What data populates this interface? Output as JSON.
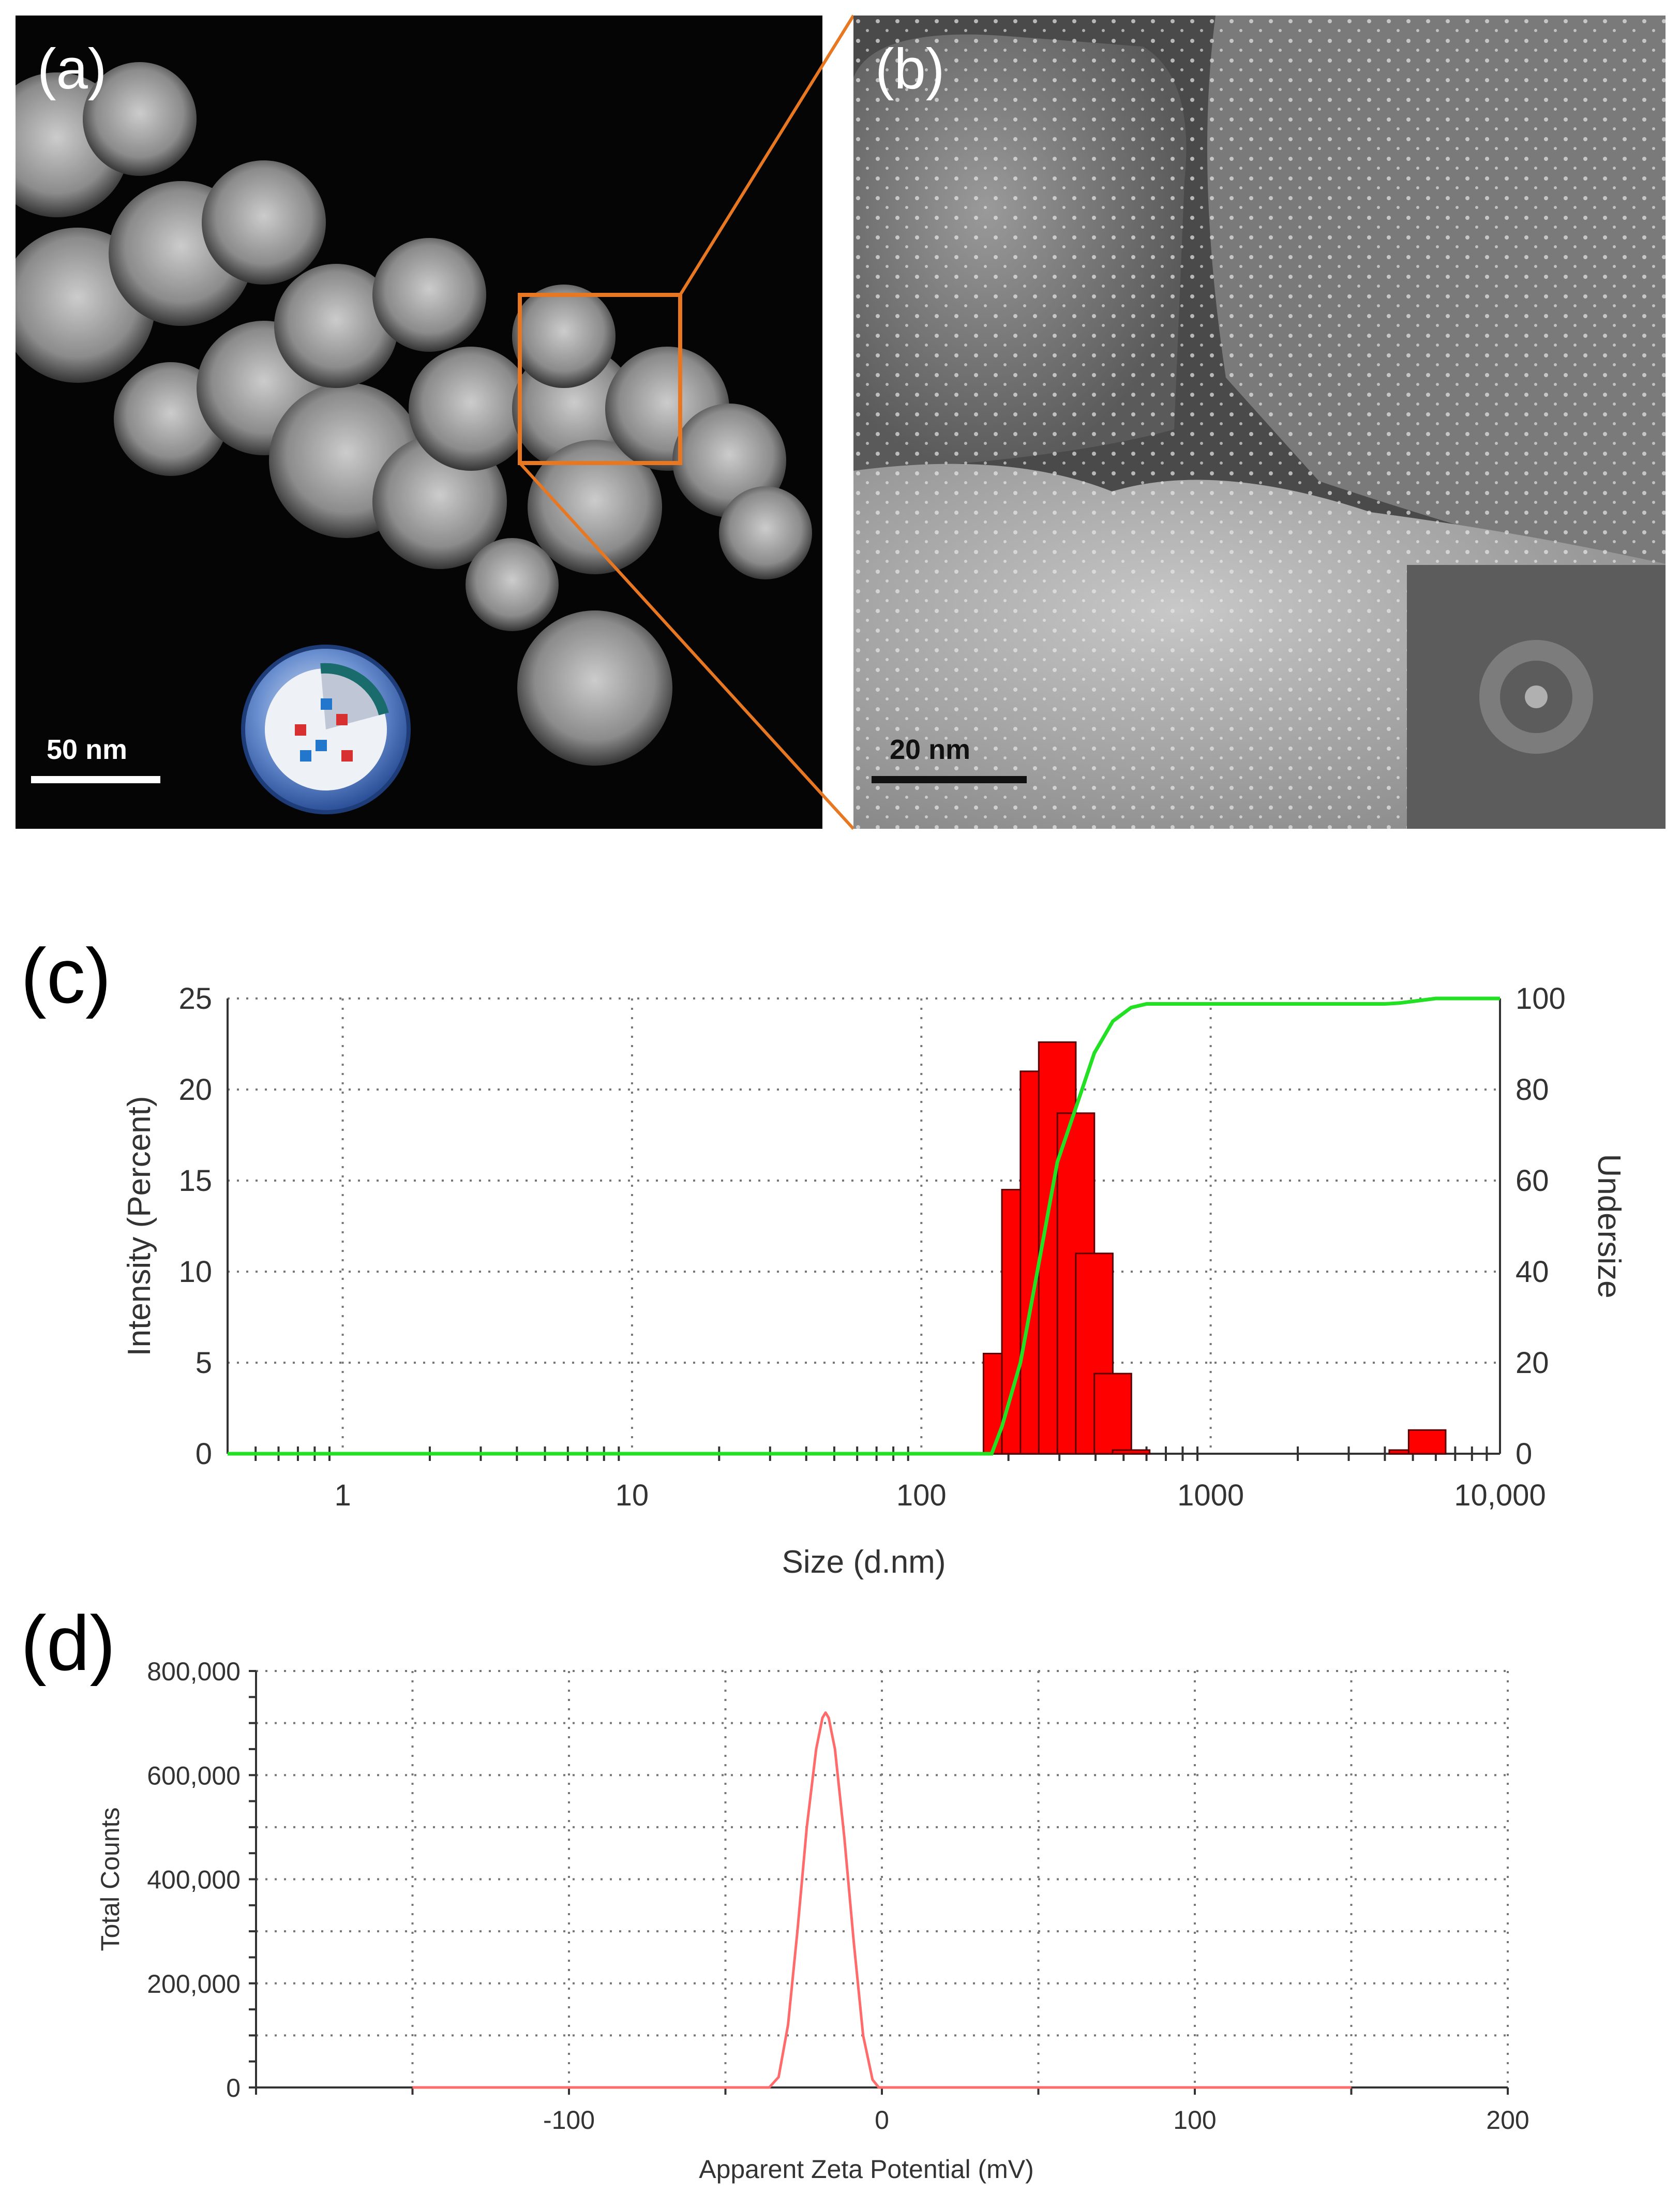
{
  "panels": {
    "a": {
      "label": "(a)",
      "scale": "50 nm"
    },
    "b": {
      "label": "(b)",
      "scale": "20 nm"
    },
    "c": {
      "label": "(c)"
    },
    "d": {
      "label": "(d)"
    }
  },
  "colors": {
    "callout": "#E87722",
    "bars": "#FF0000",
    "undersize_line": "#22E022",
    "zeta_line": "#FF6B6B"
  },
  "chart_data": [
    {
      "id": "c",
      "type": "bar",
      "xscale": "log",
      "xlim": [
        0.4,
        10000
      ],
      "xlabel": "Size (d.nm)",
      "ylabel": "Intensity (Percent)",
      "ylabel_right": "Undersize",
      "ylim": [
        0,
        25
      ],
      "ylim_right": [
        0,
        100
      ],
      "xticks": [
        "1",
        "10",
        "100",
        "1000",
        "10,000"
      ],
      "xtick_values": [
        1,
        10,
        100,
        1000,
        10000
      ],
      "yticks": [
        "0",
        "5",
        "10",
        "15",
        "20",
        "25"
      ],
      "yticks_right": [
        "0",
        "20",
        "40",
        "60",
        "80",
        "100"
      ],
      "grid": true,
      "bars": {
        "x": [
          190,
          220,
          255,
          295,
          342,
          396,
          459,
          531,
          4800,
          5600
        ],
        "values": [
          5.5,
          14.5,
          21.0,
          22.6,
          18.7,
          11.0,
          4.4,
          0.2,
          0.2,
          1.3
        ]
      },
      "undersize": {
        "x": [
          0.4,
          175,
          190,
          220,
          255,
          295,
          342,
          396,
          459,
          531,
          600,
          4000,
          4500,
          5200,
          6000,
          10000
        ],
        "values": [
          0,
          0,
          6,
          20,
          42,
          64,
          76,
          88,
          95,
          98,
          98.8,
          98.8,
          99.0,
          99.5,
          100,
          100
        ]
      }
    },
    {
      "id": "d",
      "type": "line",
      "xlim": [
        -200,
        200
      ],
      "ylim": [
        0,
        800000
      ],
      "xlabel": "Apparent Zeta Potential (mV)",
      "ylabel": "Total Counts",
      "xticks": [
        "-100",
        "0",
        "100",
        "200"
      ],
      "xtick_values": [
        -100,
        0,
        100,
        200
      ],
      "yticks": [
        "0",
        "200,000",
        "400,000",
        "600,000",
        "800,000"
      ],
      "ytick_values": [
        0,
        200000,
        400000,
        600000,
        800000
      ],
      "grid": true,
      "series": [
        {
          "x": [
            -150,
            -36,
            -33,
            -30,
            -27,
            -24,
            -21,
            -19,
            -18,
            -17,
            -15,
            -12,
            -9,
            -6,
            -3,
            -1,
            150
          ],
          "values": [
            0,
            0,
            20000,
            120000,
            300000,
            500000,
            650000,
            710000,
            720000,
            710000,
            650000,
            480000,
            280000,
            100000,
            15000,
            0,
            0
          ]
        }
      ]
    }
  ]
}
